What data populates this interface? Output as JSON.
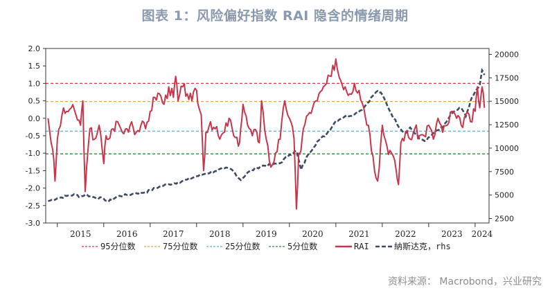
{
  "title": "图表 1：风险偏好指数 RAI 隐含的情绪周期",
  "source": "资料来源：  Macrobond，兴业研究",
  "colors": {
    "rai": "#c8344a",
    "nasdaq": "#3d4a63",
    "p95": "#d63a3a",
    "p75": "#e8a24a",
    "p25": "#5fb1cf",
    "p5": "#2e8b3a"
  },
  "chart_data": {
    "type": "line",
    "x_labels": [
      "2015",
      "2016",
      "2017",
      "2018",
      "2019",
      "2020",
      "2021",
      "2022",
      "2023",
      "2024"
    ],
    "left_axis": {
      "ticks": [
        "2.0",
        "1.5",
        "1.0",
        "0.5",
        "0.0",
        "-0.5",
        "-1.0",
        "-1.5",
        "-2.0",
        "-2.5",
        "-3.0"
      ],
      "ylim": [
        -3.0,
        2.0
      ]
    },
    "right_axis": {
      "ticks": [
        "20000",
        "17500",
        "15000",
        "12500",
        "10000",
        "7500",
        "5000",
        "2500"
      ],
      "ylim": [
        2500,
        20000
      ],
      "label": "rhs"
    },
    "reference_lines": [
      {
        "name": "95分位数",
        "value": 1.0
      },
      {
        "name": "75分位数",
        "value": 0.48
      },
      {
        "name": "25分位数",
        "value": -0.37
      },
      {
        "name": "5分位数",
        "value": -1.02
      }
    ],
    "series": [
      {
        "name": "RAI",
        "axis": "left",
        "x": [
          2014.8,
          2014.9,
          2014.95,
          2015.0,
          2015.1,
          2015.2,
          2015.3,
          2015.4,
          2015.5,
          2015.55,
          2015.6,
          2015.7,
          2015.8,
          2015.9,
          2016.0,
          2016.05,
          2016.1,
          2016.2,
          2016.3,
          2016.4,
          2016.5,
          2016.6,
          2016.7,
          2016.8,
          2016.9,
          2017.0,
          2017.1,
          2017.2,
          2017.3,
          2017.4,
          2017.5,
          2017.55,
          2017.6,
          2017.7,
          2017.8,
          2017.9,
          2018.0,
          2018.05,
          2018.1,
          2018.15,
          2018.2,
          2018.3,
          2018.4,
          2018.5,
          2018.6,
          2018.7,
          2018.8,
          2018.9,
          2018.95,
          2019.0,
          2019.1,
          2019.2,
          2019.3,
          2019.35,
          2019.4,
          2019.5,
          2019.6,
          2019.7,
          2019.8,
          2019.9,
          2020.0,
          2020.1,
          2020.15,
          2020.2,
          2020.25,
          2020.3,
          2020.4,
          2020.5,
          2020.6,
          2020.7,
          2020.8,
          2020.9,
          2021.0,
          2021.05,
          2021.1,
          2021.2,
          2021.3,
          2021.4,
          2021.5,
          2021.6,
          2021.7,
          2021.8,
          2021.9,
          2022.0,
          2022.1,
          2022.2,
          2022.3,
          2022.35,
          2022.4,
          2022.5,
          2022.6,
          2022.7,
          2022.8,
          2022.9,
          2023.0,
          2023.1,
          2023.2,
          2023.3,
          2023.4,
          2023.5,
          2023.6,
          2023.7,
          2023.8,
          2023.9,
          2024.0,
          2024.05,
          2024.1,
          2024.15,
          2024.2
        ],
        "values": [
          0.0,
          -0.9,
          -1.8,
          -0.6,
          0.1,
          0.2,
          0.3,
          0.1,
          -0.2,
          0.5,
          -2.1,
          -0.3,
          -0.6,
          -0.2,
          -1.3,
          -0.5,
          -0.6,
          -0.3,
          -0.1,
          -0.4,
          -0.3,
          -0.1,
          -0.4,
          -0.2,
          -0.3,
          0.2,
          0.6,
          0.7,
          0.4,
          0.9,
          0.6,
          1.2,
          0.5,
          0.9,
          0.7,
          0.5,
          0.8,
          0.3,
          0.1,
          -1.5,
          -0.4,
          -0.1,
          -0.3,
          -0.6,
          -0.4,
          0.0,
          -0.5,
          -0.8,
          -0.3,
          0.4,
          -0.2,
          -0.5,
          -0.4,
          -0.7,
          0.5,
          -0.6,
          -1.4,
          -1.0,
          -0.6,
          0.5,
          0.0,
          -0.6,
          -2.6,
          -1.0,
          -0.9,
          -0.3,
          0.1,
          0.3,
          0.5,
          0.8,
          1.0,
          1.2,
          1.7,
          1.3,
          1.1,
          0.9,
          0.7,
          1.0,
          0.8,
          0.3,
          -0.2,
          -1.1,
          -1.8,
          -0.2,
          -0.8,
          -1.0,
          -1.5,
          -1.9,
          -0.7,
          -0.4,
          -0.6,
          -0.3,
          -0.5,
          -0.5,
          -0.2,
          -0.6,
          0.0,
          -0.4,
          -0.2,
          0.2,
          0.0,
          -0.2,
          0.1,
          -0.1,
          0.2,
          0.9,
          0.3,
          0.9,
          0.3
        ]
      },
      {
        "name": "納斯达克，rhs",
        "axis": "right",
        "x": [
          2014.8,
          2015.0,
          2015.2,
          2015.4,
          2015.5,
          2015.6,
          2015.8,
          2016.0,
          2016.1,
          2016.3,
          2016.5,
          2016.7,
          2016.9,
          2017.0,
          2017.2,
          2017.4,
          2017.6,
          2017.8,
          2018.0,
          2018.2,
          2018.4,
          2018.6,
          2018.75,
          2018.95,
          2019.1,
          2019.3,
          2019.4,
          2019.6,
          2019.8,
          2020.0,
          2020.15,
          2020.25,
          2020.4,
          2020.6,
          2020.8,
          2021.0,
          2021.2,
          2021.4,
          2021.6,
          2021.8,
          2021.9,
          2022.0,
          2022.2,
          2022.4,
          2022.5,
          2022.6,
          2022.8,
          2022.95,
          2023.1,
          2023.3,
          2023.5,
          2023.7,
          2023.8,
          2023.9,
          2024.0,
          2024.1,
          2024.15,
          2024.2
        ],
        "values": [
          4350,
          4650,
          4900,
          5050,
          4800,
          5050,
          4750,
          4600,
          4300,
          4850,
          5000,
          5200,
          5300,
          5500,
          5900,
          6150,
          6350,
          6650,
          7000,
          7300,
          7550,
          7850,
          7750,
          6600,
          7400,
          7900,
          8100,
          8200,
          8400,
          9300,
          9700,
          7700,
          9300,
          10700,
          11500,
          12900,
          13400,
          13600,
          14300,
          15600,
          16100,
          15700,
          13600,
          12000,
          11600,
          12200,
          11000,
          10800,
          11600,
          12200,
          13700,
          14300,
          13400,
          15000,
          16000,
          16700,
          18300,
          17800
        ]
      }
    ],
    "legend": [
      "95分位数",
      "75分位数",
      "25分位数",
      "5分位数",
      "RAI",
      "納斯达克，rhs"
    ]
  }
}
